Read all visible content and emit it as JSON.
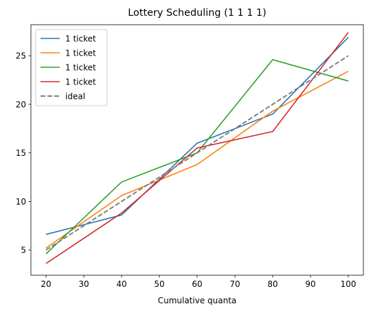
{
  "chart_data": {
    "type": "line",
    "title": "Lottery Scheduling (1 1 1 1)",
    "xlabel": "Cumulative quanta",
    "ylabel": "",
    "x": [
      20,
      40,
      60,
      80,
      100
    ],
    "xlim": [
      16,
      104
    ],
    "ylim": [
      2.4,
      28.2
    ],
    "xticks": [
      20,
      30,
      40,
      50,
      60,
      70,
      80,
      90,
      100
    ],
    "yticks": [
      5,
      10,
      15,
      20,
      25
    ],
    "grid": false,
    "legend_position": "top-left",
    "series": [
      {
        "name": "1 ticket",
        "color": "#1f77b4",
        "style": "solid",
        "values": [
          6.6,
          8.6,
          16.0,
          19.0,
          26.9
        ]
      },
      {
        "name": "1 ticket",
        "color": "#ff7f0e",
        "style": "solid",
        "values": [
          5.2,
          10.6,
          13.8,
          19.3,
          23.4
        ]
      },
      {
        "name": "1 ticket",
        "color": "#2ca02c",
        "style": "solid",
        "values": [
          4.6,
          12.0,
          15.0,
          24.6,
          22.4
        ]
      },
      {
        "name": "1 ticket",
        "color": "#d62728",
        "style": "solid",
        "values": [
          3.6,
          8.8,
          15.5,
          17.2,
          27.4
        ]
      },
      {
        "name": "ideal",
        "color": "#7f7f7f",
        "style": "dashed",
        "values": [
          5,
          10,
          15,
          20,
          25
        ]
      }
    ]
  }
}
